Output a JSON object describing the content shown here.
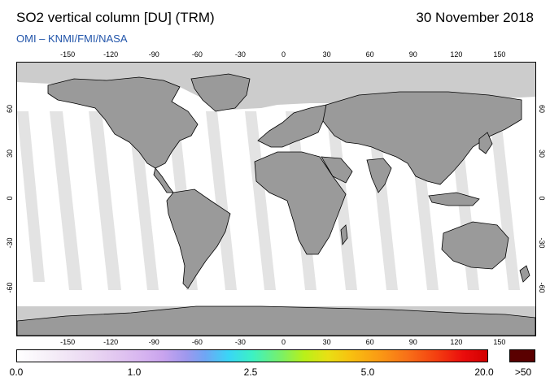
{
  "header": {
    "title": "SO2 vertical column [DU] (TRM)",
    "date": "30 November 2018",
    "credit": "OMI  –  KNMI/FMI/NASA"
  },
  "map": {
    "longitude_ticks": [
      "-150",
      "-120",
      "-90",
      "-60",
      "-30",
      "0",
      "30",
      "60",
      "90",
      "120",
      "150"
    ],
    "latitude_ticks": [
      "60",
      "30",
      "0",
      "-30",
      "-60"
    ],
    "colors": {
      "land": "#9a9a9a",
      "polar_no_data": "#cccccc",
      "ocean": "#ffffff",
      "coastline": "#000000"
    }
  },
  "colorbar": {
    "labels": [
      "0.0",
      "1.0",
      "2.5",
      "5.0",
      "20.0"
    ],
    "overflow_label": ">50",
    "overflow_color": "#5a0000"
  }
}
